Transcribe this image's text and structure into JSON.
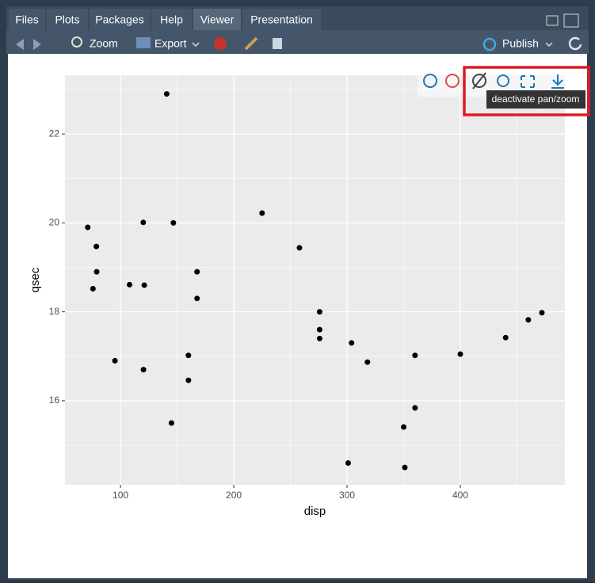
{
  "tabs": [
    "Files",
    "Plots",
    "Packages",
    "Help",
    "Viewer",
    "Presentation"
  ],
  "toolbar": {
    "zoom": "Zoom",
    "export": "Export",
    "publish": "Publish"
  },
  "tooltip": "deactivate pan/zoom",
  "chart_data": {
    "type": "scatter",
    "x": [
      160,
      160,
      108,
      258,
      360,
      225,
      360,
      146.7,
      140.8,
      167.6,
      167.6,
      275.8,
      275.8,
      275.8,
      472,
      460,
      440,
      78.7,
      75.7,
      71.1,
      120.1,
      318,
      304,
      350,
      400,
      79,
      120.3,
      95.1,
      351,
      145,
      301,
      121
    ],
    "y": [
      16.46,
      17.02,
      18.61,
      19.44,
      17.02,
      20.22,
      15.84,
      20.0,
      22.9,
      18.3,
      18.9,
      17.4,
      17.6,
      18.0,
      17.98,
      17.82,
      17.42,
      19.47,
      18.52,
      19.9,
      20.01,
      16.87,
      17.3,
      15.41,
      17.05,
      18.9,
      16.7,
      16.9,
      14.5,
      15.5,
      14.6,
      18.6
    ],
    "x_label": "disp",
    "y_label": "qsec",
    "xlim": [
      51,
      492.3
    ],
    "ylim": [
      14.11,
      23.32
    ],
    "xticks": [
      100,
      200,
      300,
      400
    ],
    "yticks": [
      16,
      18,
      20,
      22
    ],
    "x_minor_breaks": [
      150,
      250,
      350,
      450
    ],
    "y_minor_breaks": [
      15,
      17,
      19,
      21,
      23
    ],
    "color": "#000000",
    "grid": true
  }
}
